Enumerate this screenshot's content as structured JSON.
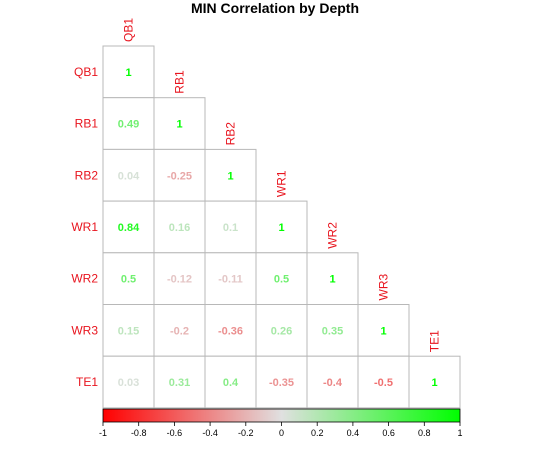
{
  "chart_data": {
    "type": "heatmap",
    "title": "MIN Correlation by Depth",
    "variables": [
      "QB1",
      "RB1",
      "RB2",
      "WR1",
      "WR2",
      "WR3",
      "TE1"
    ],
    "values": [
      [
        "1"
      ],
      [
        "0.49",
        "1"
      ],
      [
        "0.04",
        "-0.25",
        "1"
      ],
      [
        "0.84",
        "0.16",
        "0.1",
        "1"
      ],
      [
        "0.5",
        "-0.12",
        "-0.11",
        "0.5",
        "1"
      ],
      [
        "0.15",
        "-0.2",
        "-0.36",
        "0.26",
        "0.35",
        "1"
      ],
      [
        "0.03",
        "0.31",
        "0.4",
        "-0.35",
        "-0.4",
        "-0.5",
        "1"
      ]
    ],
    "color_scale": {
      "range": [
        -1,
        1
      ],
      "ticks": [
        "-1",
        "-0.8",
        "-0.6",
        "-0.4",
        "-0.2",
        "0",
        "0.2",
        "0.4",
        "0.6",
        "0.8",
        "1"
      ],
      "low_color": "#ff0000",
      "mid_color": "#e0e0e0",
      "high_color": "#00ff00"
    },
    "label_color": "#e8141e",
    "layout": "lower-triangle",
    "legend_placement": "bottom"
  }
}
